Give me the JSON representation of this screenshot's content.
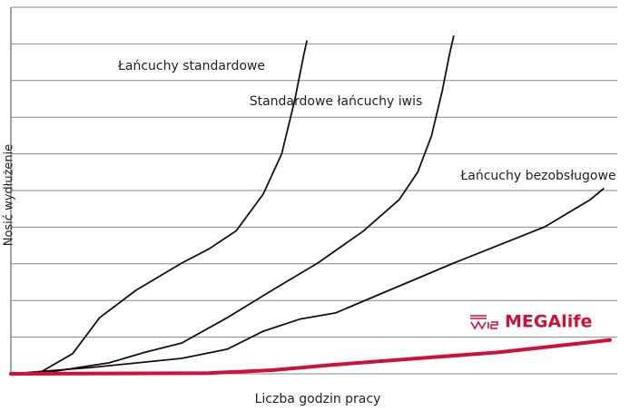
{
  "chart_data": {
    "type": "line",
    "x_label": "Liczba godzin pracy",
    "y_label": "Nosić wydłużenie",
    "xlim": [
      0,
      100
    ],
    "ylim": [
      0,
      10
    ],
    "yticks": [
      0,
      1,
      2,
      3,
      4,
      5,
      6,
      7,
      8,
      9,
      10
    ],
    "grid": true,
    "series": [
      {
        "name": "Łańcuchy standardowe",
        "color": "#111111",
        "x": [
          0,
          5,
          10.3,
          14.8,
          20.9,
          28.5,
          33,
          37.6,
          42.1,
          45.2,
          47.4,
          48.9,
          49.4
        ],
        "values": [
          0,
          0.05,
          0.55,
          1.53,
          2.28,
          3.02,
          3.4,
          3.9,
          4.9,
          6.0,
          7.48,
          8.71,
          9.08
        ]
      },
      {
        "name": "Standardowe łańcuchy iwis",
        "color": "#111111",
        "x": [
          0,
          7.3,
          16.4,
          22.4,
          28.5,
          36.1,
          43.6,
          51.2,
          58.8,
          64.8,
          67.9,
          70.2,
          72,
          73.2,
          73.9
        ],
        "values": [
          0,
          0.07,
          0.3,
          0.59,
          0.84,
          1.53,
          2.28,
          3.02,
          3.89,
          4.75,
          5.5,
          6.49,
          7.72,
          8.71,
          9.21
        ]
      },
      {
        "name": "Łańcuchy bezobsługowe",
        "color": "#111111",
        "x": [
          0,
          13.3,
          28.5,
          36.1,
          42.1,
          48.2,
          54.2,
          58.8,
          73.9,
          89.1,
          96.7,
          98.9
        ],
        "values": [
          0,
          0.17,
          0.42,
          0.67,
          1.16,
          1.49,
          1.66,
          1.98,
          3.02,
          4.01,
          4.75,
          5.05
        ]
      },
      {
        "name": "MEGAlife",
        "color": "#d0103a",
        "x": [
          0,
          33,
          43.6,
          54.2,
          66.4,
          81.5,
          100
        ],
        "values": [
          0,
          0.02,
          0.1,
          0.25,
          0.4,
          0.59,
          0.92
        ]
      }
    ]
  }
}
